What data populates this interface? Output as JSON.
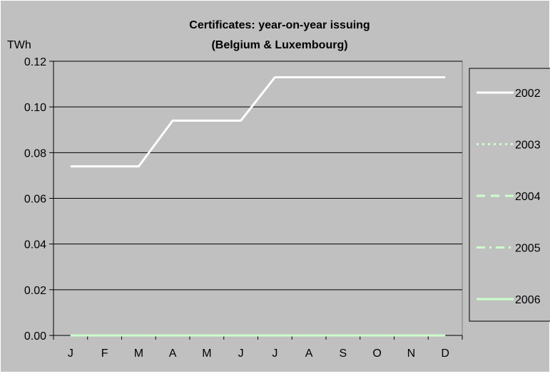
{
  "chart_data": {
    "type": "line",
    "title_line1": "Certificates: year-on-year issuing",
    "title_line2": "(Belgium & Luxembourg)",
    "ylabel": "TWh",
    "xlabel": "",
    "categories": [
      "J",
      "F",
      "M",
      "A",
      "M",
      "J",
      "J",
      "A",
      "S",
      "O",
      "N",
      "D"
    ],
    "ylim": [
      0,
      0.12
    ],
    "yticks": [
      "0.00",
      "0.02",
      "0.04",
      "0.06",
      "0.08",
      "0.10",
      "0.12"
    ],
    "grid": true,
    "legend_position": "right",
    "series": [
      {
        "name": "2002",
        "values": [
          0.074,
          0.074,
          0.074,
          0.094,
          0.094,
          0.094,
          0.113,
          0.113,
          0.113,
          0.113,
          0.113,
          0.113
        ],
        "color": "#ffffff",
        "dash": "solid"
      },
      {
        "name": "2003",
        "values": [
          0,
          0,
          0,
          0,
          0,
          0,
          0,
          0,
          0,
          0,
          0,
          0
        ],
        "color": "#ccffcc",
        "dash": "dot"
      },
      {
        "name": "2004",
        "values": [
          0,
          0,
          0,
          0,
          0,
          0,
          0,
          0,
          0,
          0,
          0,
          0
        ],
        "color": "#ccffcc",
        "dash": "dash"
      },
      {
        "name": "2005",
        "values": [
          0,
          0,
          0,
          0,
          0,
          0,
          0,
          0,
          0,
          0,
          0,
          0
        ],
        "color": "#ccffcc",
        "dash": "dashdot"
      },
      {
        "name": "2006",
        "values": [
          0,
          0,
          0,
          0,
          0,
          0,
          0,
          0,
          0,
          0,
          0,
          0
        ],
        "color": "#ccffcc",
        "dash": "solid"
      }
    ],
    "colors": {
      "plot_background": "#c0c0c0",
      "gridline": "#000000",
      "axis": "#000000"
    }
  }
}
